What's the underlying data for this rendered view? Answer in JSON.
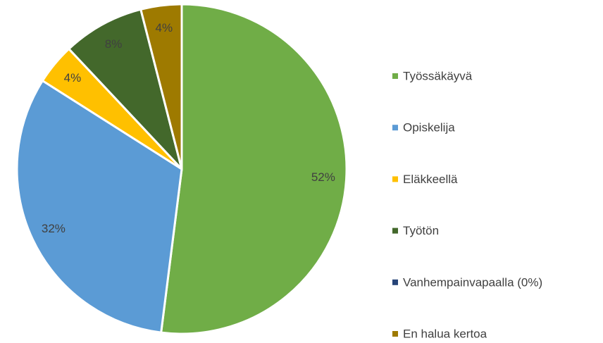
{
  "chart_data": {
    "type": "pie",
    "categories": [
      "Työssäkäyvä",
      "Opiskelija",
      "Eläkkeellä",
      "Työtön",
      "Vanhempainvapaalla (0%)",
      "En halua kertoa"
    ],
    "values": [
      52,
      32,
      4,
      8,
      0,
      4
    ],
    "value_labels": [
      "52%",
      "32%",
      "4%",
      "8%",
      null,
      "4%"
    ],
    "colors": [
      "#70ad47",
      "#5b9bd5",
      "#ffc000",
      "#43682b",
      "#264478",
      "#9e7a00"
    ],
    "legend": "right"
  }
}
